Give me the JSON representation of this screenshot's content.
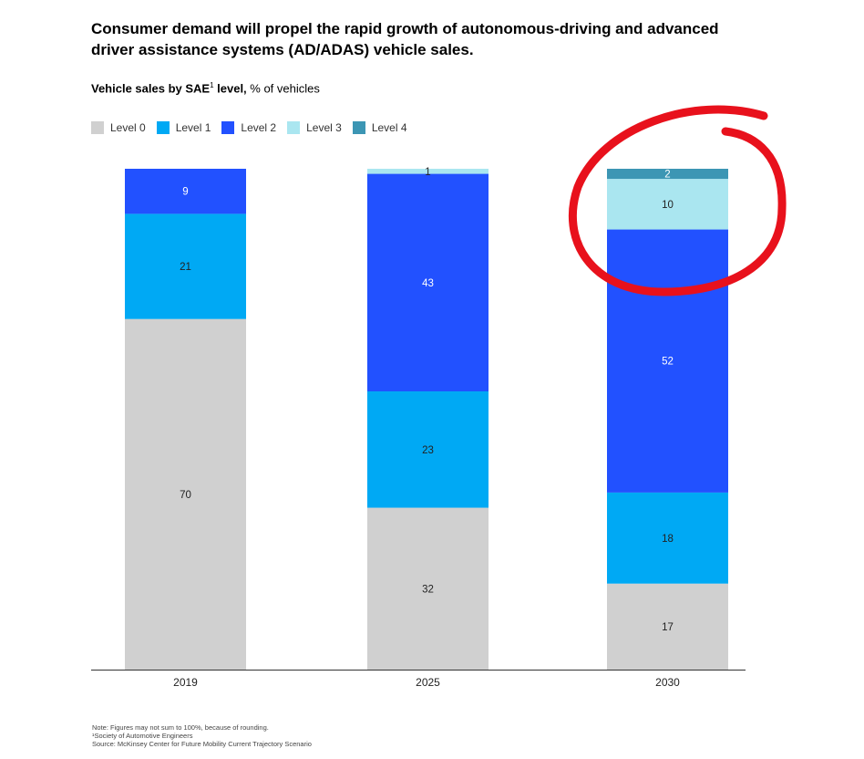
{
  "title": "Consumer demand will propel the rapid growth of autonomous-driving and advanced driver assistance systems (AD/ADAS) vehicle sales.",
  "subtitle": {
    "bold": "Vehicle sales by SAE",
    "sup": "1",
    "bold_suffix": " level,",
    "rest": " % of vehicles"
  },
  "colors": {
    "Level 0": "#d0d0d0",
    "Level 1": "#00a9f4",
    "Level 2": "#2251ff",
    "Level 3": "#aae6f0",
    "Level 4": "#3c96b4",
    "annotation": "#e8111c"
  },
  "chart_data": {
    "type": "bar",
    "stacked": true,
    "categories": [
      "2019",
      "2025",
      "2030"
    ],
    "series": [
      {
        "name": "Level 0",
        "values": [
          70,
          32,
          17
        ]
      },
      {
        "name": "Level 1",
        "values": [
          21,
          23,
          18
        ]
      },
      {
        "name": "Level 2",
        "values": [
          9,
          43,
          52
        ]
      },
      {
        "name": "Level 3",
        "values": [
          0,
          1,
          10
        ]
      },
      {
        "name": "Level 4",
        "values": [
          0,
          0,
          2
        ]
      }
    ],
    "ylim": [
      0,
      100
    ],
    "grid": false,
    "legend": "top-left",
    "annotation": "red hand-drawn circle around 2030 Level 3 and Level 4 segments"
  },
  "notes": [
    "Note: Figures may not sum to 100%, because of rounding.",
    "¹Society of Automotive Engineers",
    "Source: McKinsey Center for Future Mobility Current Trajectory Scenario"
  ]
}
